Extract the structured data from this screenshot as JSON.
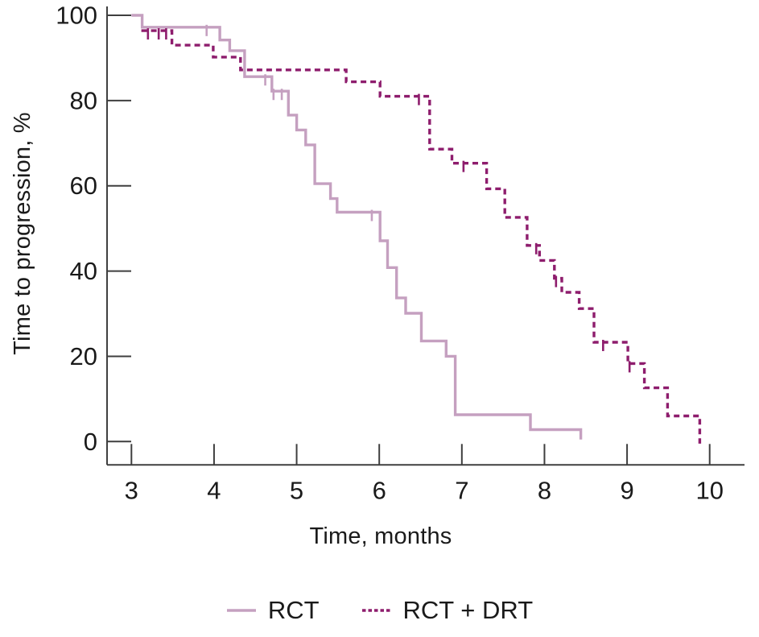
{
  "chart_data": {
    "type": "line",
    "subtype": "kaplan-meier-step",
    "title": "",
    "xlabel": "Time, months",
    "ylabel": "Time to progression, %",
    "xlim": [
      3,
      10
    ],
    "ylim": [
      0,
      100
    ],
    "x_ticks": [
      "3",
      "4",
      "5",
      "6",
      "7",
      "8",
      "9",
      "10"
    ],
    "y_ticks": [
      "0",
      "20",
      "40",
      "60",
      "80",
      "100"
    ],
    "grid": false,
    "legend_position": "bottom-center",
    "axis_color": "#3f3f3f",
    "text_color": "#1a1a1a",
    "series": [
      {
        "name": "RCT",
        "color": "#c5a0c0",
        "line_style": "solid",
        "steps": [
          [
            3.0,
            100
          ],
          [
            3.13,
            97.2
          ],
          [
            4.07,
            94.2
          ],
          [
            4.19,
            91.7
          ],
          [
            4.37,
            85.6
          ],
          [
            4.7,
            82.2
          ],
          [
            4.9,
            76.6
          ],
          [
            5.0,
            73.1
          ],
          [
            5.11,
            69.6
          ],
          [
            5.22,
            60.5
          ],
          [
            5.41,
            57.0
          ],
          [
            5.49,
            53.8
          ],
          [
            6.01,
            47.1
          ],
          [
            6.1,
            40.8
          ],
          [
            6.21,
            33.7
          ],
          [
            6.32,
            30.1
          ],
          [
            6.51,
            23.6
          ],
          [
            6.81,
            20.0
          ],
          [
            6.92,
            6.3
          ],
          [
            7.83,
            2.8
          ],
          [
            8.44,
            0.5
          ]
        ],
        "censor_marks": [
          [
            3.91,
            97.2
          ],
          [
            4.62,
            85.6
          ],
          [
            4.72,
            82.2
          ],
          [
            4.82,
            82.2
          ],
          [
            5.91,
            53.8
          ]
        ]
      },
      {
        "name": "RCT + DRT",
        "color": "#8e1d6d",
        "line_style": "dashed",
        "steps": [
          [
            3.12,
            96.4
          ],
          [
            3.49,
            93.0
          ],
          [
            3.99,
            90.2
          ],
          [
            4.32,
            87.2
          ],
          [
            5.6,
            84.4
          ],
          [
            6.01,
            81.0
          ],
          [
            6.61,
            68.6
          ],
          [
            6.88,
            65.3
          ],
          [
            7.3,
            59.3
          ],
          [
            7.52,
            52.6
          ],
          [
            7.79,
            46.0
          ],
          [
            7.94,
            42.5
          ],
          [
            8.12,
            38.3
          ],
          [
            8.21,
            35.0
          ],
          [
            8.42,
            31.2
          ],
          [
            8.6,
            23.3
          ],
          [
            9.01,
            18.3
          ],
          [
            9.21,
            12.6
          ],
          [
            9.49,
            6.0
          ],
          [
            9.88,
            -0.5
          ]
        ],
        "censor_marks": [
          [
            3.2,
            96.4
          ],
          [
            3.33,
            96.4
          ],
          [
            3.42,
            96.4
          ],
          [
            6.48,
            81.0
          ],
          [
            7.02,
            65.3
          ],
          [
            7.9,
            46.0
          ],
          [
            8.14,
            38.3
          ],
          [
            8.71,
            23.3
          ],
          [
            9.03,
            18.3
          ]
        ]
      }
    ]
  }
}
